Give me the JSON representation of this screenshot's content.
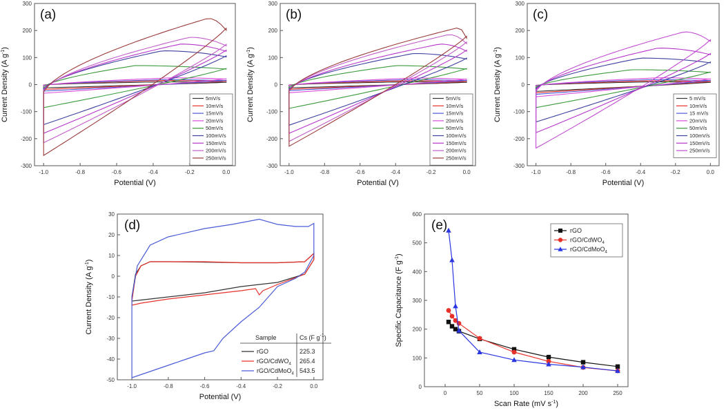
{
  "chart_data": [
    {
      "id": "a",
      "type": "line",
      "panel_label": "(a)",
      "xlabel": "Potential (V)",
      "ylabel": "Current Density (A g⁻¹)",
      "xlim": [
        -1.05,
        0.05
      ],
      "ylim": [
        -300,
        300
      ],
      "xticks": [
        -1.0,
        -0.8,
        -0.6,
        -0.4,
        -0.2,
        0.0
      ],
      "xtick_labels": [
        "-1.0",
        "-0.8",
        "-0.6",
        "-0.4",
        "-0.2",
        "0.0"
      ],
      "yticks": [
        -300,
        -200,
        -100,
        0,
        100,
        200,
        300
      ],
      "ytick_labels": [
        "-300",
        "-200",
        "-100",
        "0",
        "100",
        "200",
        "300"
      ],
      "legend_position": "bottom-right",
      "series": [
        {
          "name": "5mV/s",
          "color": "#333333",
          "top": 10,
          "bottom": -12,
          "peak_x": -0.35
        },
        {
          "name": "10mV/s",
          "color": "#e8302a",
          "top": 15,
          "bottom": -18,
          "peak_x": -0.35
        },
        {
          "name": "15mV/s",
          "color": "#4a5bd6",
          "top": 18,
          "bottom": -24,
          "peak_x": -0.35
        },
        {
          "name": "20mV/s",
          "color": "#d94bd9",
          "top": 25,
          "bottom": -32,
          "peak_x": -0.3
        },
        {
          "name": "50mV/s",
          "color": "#3a9a3a",
          "top": 70,
          "bottom": -85,
          "peak_x": -0.5
        },
        {
          "name": "100mV/s",
          "color": "#3b3f9e",
          "top": 125,
          "bottom": -148,
          "peak_x": -0.35
        },
        {
          "name": "150mV/s",
          "color": "#b535c9",
          "top": 150,
          "bottom": -180,
          "peak_x": -0.25
        },
        {
          "name": "200mV/s",
          "color": "#c05ec8",
          "top": 175,
          "bottom": -215,
          "peak_x": -0.2
        },
        {
          "name": "250mV/s",
          "color": "#9a3a3a",
          "top": 245,
          "bottom": -262,
          "peak_x": -0.1
        }
      ]
    },
    {
      "id": "b",
      "type": "line",
      "panel_label": "(b)",
      "xlabel": "Potential (V)",
      "ylabel": "Current Density (A g⁻¹)",
      "xlim": [
        -1.05,
        0.05
      ],
      "ylim": [
        -300,
        300
      ],
      "xticks": [
        -1.0,
        -0.8,
        -0.6,
        -0.4,
        -0.2,
        0.0
      ],
      "xtick_labels": [
        "-1.0",
        "-0.8",
        "-0.6",
        "-0.4",
        "-0.2",
        "0.0"
      ],
      "yticks": [
        -300,
        -200,
        -100,
        0,
        100,
        200,
        300
      ],
      "ytick_labels": [
        "-300",
        "-200",
        "-100",
        "0",
        "100",
        "200",
        "300"
      ],
      "legend_position": "bottom-right",
      "series": [
        {
          "name": "5mV/s",
          "color": "#333333",
          "top": 10,
          "bottom": -12,
          "peak_x": -0.35
        },
        {
          "name": "10mV/s",
          "color": "#e8302a",
          "top": 14,
          "bottom": -17,
          "peak_x": -0.35
        },
        {
          "name": "15mV/s",
          "color": "#4a5bd6",
          "top": 18,
          "bottom": -22,
          "peak_x": -0.35
        },
        {
          "name": "20mV/s",
          "color": "#d94bd9",
          "top": 24,
          "bottom": -30,
          "peak_x": -0.3
        },
        {
          "name": "50mV/s",
          "color": "#3a9a3a",
          "top": 70,
          "bottom": -88,
          "peak_x": -0.4
        },
        {
          "name": "100mV/s",
          "color": "#3b3f9e",
          "top": 115,
          "bottom": -150,
          "peak_x": -0.3
        },
        {
          "name": "150mV/s",
          "color": "#b535c9",
          "top": 150,
          "bottom": -180,
          "peak_x": -0.15
        },
        {
          "name": "200mV/s",
          "color": "#c05ec8",
          "top": 185,
          "bottom": -210,
          "peak_x": -0.1
        },
        {
          "name": "250mV/s",
          "color": "#9a3a3a",
          "top": 210,
          "bottom": -228,
          "peak_x": -0.05
        }
      ]
    },
    {
      "id": "c",
      "type": "line",
      "panel_label": "(c)",
      "xlabel": "Potential (V)",
      "ylabel": "Current Density (A g⁻¹)",
      "xlim": [
        -1.05,
        0.05
      ],
      "ylim": [
        -300,
        300
      ],
      "xticks": [
        -1.0,
        -0.8,
        -0.6,
        -0.4,
        -0.2,
        0.0
      ],
      "xtick_labels": [
        "-1.0",
        "-0.8",
        "-0.6",
        "-0.4",
        "-0.2",
        "0.0"
      ],
      "yticks": [
        -300,
        -200,
        -100,
        0,
        100,
        200,
        300
      ],
      "ytick_labels": [
        "-300",
        "-200",
        "-100",
        "0",
        "100",
        "200",
        "300"
      ],
      "legend_position": "bottom-right",
      "series": [
        {
          "name": "5 mV/s",
          "color": "#333333",
          "top": 10,
          "bottom": -25,
          "peak_x": -0.35
        },
        {
          "name": "10mV/s",
          "color": "#e8302a",
          "top": 14,
          "bottom": -30,
          "peak_x": -0.35
        },
        {
          "name": "15 mV/s",
          "color": "#4a5bd6",
          "top": 18,
          "bottom": -36,
          "peak_x": -0.35
        },
        {
          "name": "20mV/s",
          "color": "#d94bd9",
          "top": 25,
          "bottom": -45,
          "peak_x": -0.3
        },
        {
          "name": "50mV/s",
          "color": "#3a9a3a",
          "top": 55,
          "bottom": -85,
          "peak_x": -0.45
        },
        {
          "name": "100mV/s",
          "color": "#3b3f9e",
          "top": 98,
          "bottom": -138,
          "peak_x": -0.4
        },
        {
          "name": "150mV/s",
          "color": "#b535c9",
          "top": 135,
          "bottom": -178,
          "peak_x": -0.3
        },
        {
          "name": "250mV/s",
          "color": "#c04ad0",
          "top": 195,
          "bottom": -235,
          "peak_x": -0.15
        }
      ]
    },
    {
      "id": "d",
      "type": "line",
      "panel_label": "(d)",
      "xlabel": "Potential (V)",
      "ylabel": "Current Density (A g⁻¹)",
      "xlim": [
        -1.08,
        0.05
      ],
      "ylim": [
        -50,
        30
      ],
      "xticks": [
        -1.0,
        -0.8,
        -0.6,
        -0.4,
        -0.2,
        0.0
      ],
      "xtick_labels": [
        "-1.0",
        "-0.8",
        "-0.6",
        "-0.4",
        "-0.2",
        "0.0"
      ],
      "yticks": [
        -50,
        -40,
        -30,
        -20,
        -10,
        0,
        10,
        20,
        30
      ],
      "ytick_labels": [
        "-50",
        "-40",
        "-30",
        "-20",
        "-10",
        "0",
        "10",
        "20",
        "30"
      ],
      "table": {
        "header_sample": "Sample",
        "header_cs": "Cs (F g⁻¹)",
        "rows": [
          {
            "sample": "rGO",
            "value": "225.3",
            "color": "#333333"
          },
          {
            "sample": "rGO/CdWO4",
            "value": "265.4",
            "color": "#e8302a"
          },
          {
            "sample": "rGO/CdMoO4",
            "value": "543.5",
            "color": "#4a5bd6"
          }
        ]
      },
      "series": [
        {
          "name": "rGO",
          "color": "#333333",
          "x": [
            -1.0,
            -0.98,
            -0.95,
            -0.9,
            -0.8,
            -0.6,
            -0.4,
            -0.2,
            -0.05,
            0.0,
            0.0,
            -0.05,
            -0.2,
            -0.4,
            -0.6,
            -0.8,
            -0.95,
            -1.0
          ],
          "y": [
            -10,
            1,
            5,
            7,
            7,
            6.8,
            6.5,
            6.5,
            7,
            11,
            8,
            1,
            -3,
            -5,
            -8,
            -10,
            -11.5,
            -12
          ]
        },
        {
          "name": "rGO/CdWO4",
          "color": "#e8302a",
          "x": [
            -1.0,
            -0.98,
            -0.95,
            -0.9,
            -0.8,
            -0.6,
            -0.4,
            -0.2,
            -0.05,
            0.0,
            0.0,
            -0.05,
            -0.2,
            -0.28,
            -0.3,
            -0.32,
            -0.4,
            -0.6,
            -0.8,
            -0.95,
            -1.0
          ],
          "y": [
            -12,
            0,
            5,
            7,
            7,
            7,
            6.5,
            6.5,
            7,
            11,
            8,
            1,
            -4,
            -7,
            -9,
            -6,
            -7,
            -9,
            -11,
            -13,
            -14
          ]
        },
        {
          "name": "rGO/CdMoO4",
          "color": "#4a5bd6",
          "x": [
            -1.0,
            -0.97,
            -0.9,
            -0.8,
            -0.6,
            -0.45,
            -0.3,
            -0.2,
            -0.1,
            -0.03,
            0.0,
            0.0,
            -0.05,
            -0.1,
            -0.2,
            -0.3,
            -0.4,
            -0.5,
            -0.55,
            -0.6,
            -0.7,
            -0.8,
            -0.9,
            -1.0
          ],
          "y": [
            -10,
            5,
            15,
            19,
            23,
            25,
            27.5,
            25,
            24,
            24,
            25.5,
            10,
            2,
            -1,
            -5,
            -15,
            -22,
            -30,
            -36,
            -37,
            -40,
            -43,
            -46,
            -49
          ]
        }
      ]
    },
    {
      "id": "e",
      "type": "line",
      "panel_label": "(e)",
      "xlabel": "Scan Rate (mV s⁻¹)",
      "ylabel": "Specific Capacitance (F g⁻¹)",
      "xlim": [
        -30,
        265
      ],
      "ylim": [
        0,
        600
      ],
      "xticks": [
        0,
        50,
        100,
        150,
        200,
        250
      ],
      "xtick_labels": [
        "0",
        "50",
        "100",
        "150",
        "200",
        "250"
      ],
      "yticks": [
        0,
        100,
        200,
        300,
        400,
        500,
        600
      ],
      "ytick_labels": [
        "0",
        "100",
        "200",
        "300",
        "400",
        "500",
        "600"
      ],
      "legend_position": "top-right",
      "series": [
        {
          "name": "rGO",
          "color": "#111111",
          "marker": "square",
          "x": [
            5,
            10,
            15,
            20,
            50,
            100,
            150,
            200,
            250
          ],
          "values": [
            225,
            210,
            200,
            193,
            166,
            130,
            103,
            85,
            70
          ]
        },
        {
          "name": "rGO/CdWO4",
          "color": "#e8302a",
          "marker": "circle",
          "x": [
            5,
            10,
            15,
            20,
            50,
            100,
            150,
            200,
            250
          ],
          "values": [
            265,
            245,
            230,
            220,
            168,
            120,
            88,
            67,
            55
          ]
        },
        {
          "name": "rGO/CdMoO4",
          "color": "#2a36e0",
          "marker": "triangle",
          "x": [
            5,
            10,
            15,
            20,
            50,
            100,
            150,
            200,
            250
          ],
          "values": [
            543,
            440,
            280,
            195,
            120,
            93,
            78,
            68,
            55
          ]
        }
      ]
    }
  ]
}
